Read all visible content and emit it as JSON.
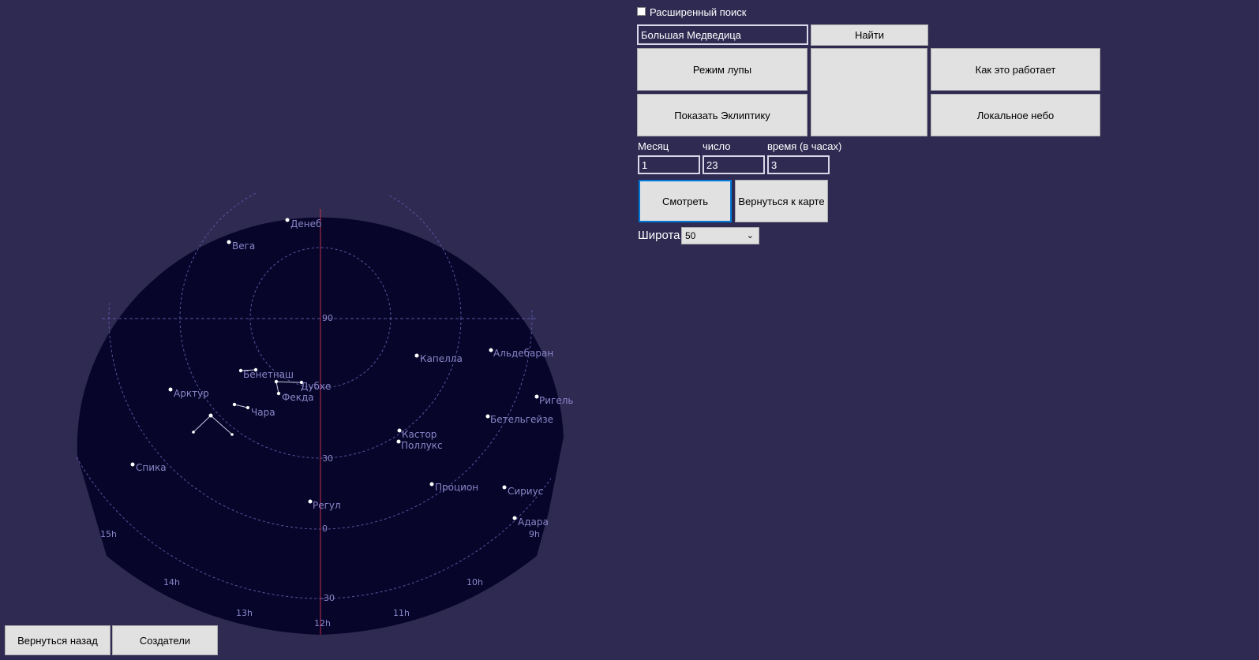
{
  "search": {
    "advanced_label": "Расширенный поиск",
    "query_value": "Большая Медведица",
    "find_label": "Найти"
  },
  "buttons": {
    "magnifier": "Режим лупы",
    "how_it_works": "Как это работает",
    "ecliptic": "Показать Эклиптику",
    "local_sky": "Локальное небо",
    "view": "Смотреть",
    "back_to_map": "Вернуться к карте",
    "go_back": "Вернуться назад",
    "creators": "Создатели"
  },
  "date": {
    "month_label": "Месяц",
    "day_label": "число",
    "time_label": "время (в часах)",
    "month_value": "1",
    "day_value": "23",
    "time_value": "3"
  },
  "latitude": {
    "label": "Широта",
    "value": "50"
  },
  "sky": {
    "colors": {
      "page_bg": "#2f2a52",
      "sky_bg": "#07052a",
      "grid": "#5a56a0",
      "meridian": "#c0304a",
      "label": "#8a86c8",
      "star": "#ffffff"
    },
    "dec_labels": [
      "90",
      "30",
      "0",
      "-30"
    ],
    "hour_labels": [
      "15h",
      "14h",
      "13h",
      "12h",
      "11h",
      "10h",
      "9h"
    ],
    "stars": [
      "Денеб",
      "Вега",
      "Капелла",
      "Альдебаран",
      "Бенетнаш",
      "Дубхе",
      "Фекда",
      "Арктур",
      "Чара",
      "Ригель",
      "Бетельгейзе",
      "Кастор",
      "Поллукс",
      "Спика",
      "Процион",
      "Сириус",
      "Регул",
      "Адара"
    ]
  }
}
